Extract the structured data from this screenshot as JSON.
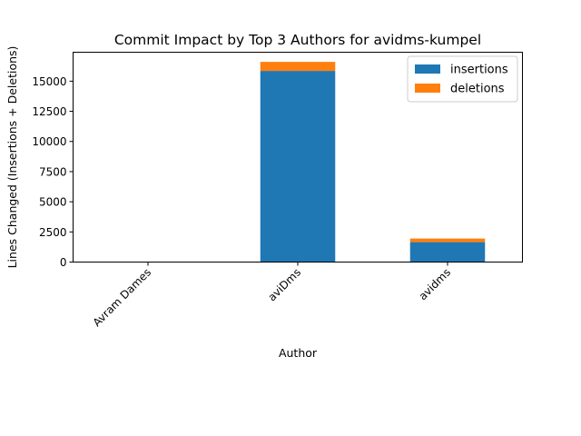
{
  "chart_data": {
    "type": "bar",
    "stacked": true,
    "title": "Commit Impact by Top 3 Authors for avidms-kumpel",
    "xlabel": "Author",
    "ylabel": "Lines Changed (Insertions + Deletions)",
    "categories": [
      "Avram Dames",
      "aviDms",
      "avidms"
    ],
    "series": [
      {
        "name": "insertions",
        "values": [
          5,
          15850,
          1650
        ],
        "color": "#1f77b4"
      },
      {
        "name": "deletions",
        "values": [
          1,
          750,
          300
        ],
        "color": "#ff7f0e"
      }
    ],
    "ylim": [
      0,
      17400
    ],
    "yticks": [
      0,
      2500,
      5000,
      7500,
      10000,
      12500,
      15000
    ],
    "ytick_labels": [
      "0",
      "2500",
      "5000",
      "7500",
      "10000",
      "12500",
      "15000"
    ],
    "legend_position": "top-right",
    "grid": false
  }
}
